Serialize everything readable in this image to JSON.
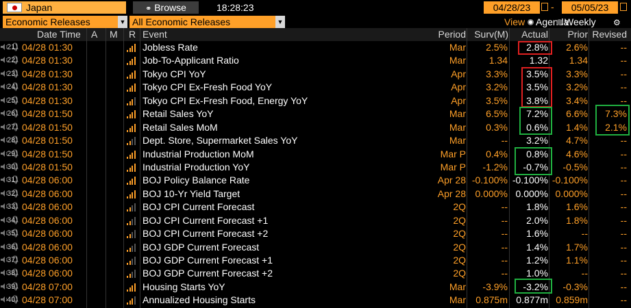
{
  "toolbar": {
    "country": "Japan",
    "browse_label": "Browse",
    "time": "18:28:23",
    "start_date": "04/28/23",
    "end_date": "05/05/23",
    "date_separator": "-"
  },
  "filters": {
    "category": "Economic Releases",
    "subcategory": "All Economic Releases",
    "view_label": "View",
    "agenda_label": "Agenda",
    "weekly_label": "Weekly"
  },
  "columns": {
    "datetime": "Date Time",
    "a": "A",
    "m": "M",
    "r": "R",
    "event": "Event",
    "period": "Period",
    "surv": "Surv(M)",
    "actual": "Actual",
    "prior": "Prior",
    "revised": "Revised"
  },
  "rows": [
    {
      "n": "21)",
      "dt": "04/28 01:30",
      "event": "Jobless Rate",
      "period": "Mar",
      "surv": "2.5%",
      "actual": "2.8%",
      "prior": "2.6%",
      "revised": "--",
      "rel": 4
    },
    {
      "n": "22)",
      "dt": "04/28 01:30",
      "event": "Job-To-Applicant Ratio",
      "period": "Mar",
      "surv": "1.34",
      "actual": "1.32",
      "prior": "1.34",
      "revised": "--",
      "rel": 4
    },
    {
      "n": "23)",
      "dt": "04/28 01:30",
      "event": "Tokyo CPI YoY",
      "period": "Apr",
      "surv": "3.3%",
      "actual": "3.5%",
      "prior": "3.3%",
      "revised": "--",
      "rel": 4
    },
    {
      "n": "24)",
      "dt": "04/28 01:30",
      "event": "Tokyo CPI Ex-Fresh Food YoY",
      "period": "Apr",
      "surv": "3.2%",
      "actual": "3.5%",
      "prior": "3.2%",
      "revised": "--",
      "rel": 4
    },
    {
      "n": "25)",
      "dt": "04/28 01:30",
      "event": "Tokyo CPI Ex-Fresh Food, Energy YoY",
      "period": "Apr",
      "surv": "3.5%",
      "actual": "3.8%",
      "prior": "3.4%",
      "revised": "--",
      "rel": 3
    },
    {
      "n": "26)",
      "dt": "04/28 01:50",
      "event": "Retail Sales YoY",
      "period": "Mar",
      "surv": "6.5%",
      "actual": "7.2%",
      "prior": "6.6%",
      "revised": "7.3%",
      "rel": 4
    },
    {
      "n": "27)",
      "dt": "04/28 01:50",
      "event": "Retail Sales MoM",
      "period": "Mar",
      "surv": "0.3%",
      "actual": "0.6%",
      "prior": "1.4%",
      "revised": "2.1%",
      "rel": 4
    },
    {
      "n": "28)",
      "dt": "04/28 01:50",
      "event": "Dept. Store, Supermarket Sales YoY",
      "period": "Mar",
      "surv": "--",
      "actual": "3.2%",
      "prior": "4.7%",
      "revised": "--",
      "rel": 2
    },
    {
      "n": "29)",
      "dt": "04/28 01:50",
      "event": "Industrial Production MoM",
      "period": "Mar P",
      "surv": "0.4%",
      "actual": "0.8%",
      "prior": "4.6%",
      "revised": "--",
      "rel": 4
    },
    {
      "n": "30)",
      "dt": "04/28 01:50",
      "event": "Industrial Production YoY",
      "period": "Mar P",
      "surv": "-1.2%",
      "actual": "-0.7%",
      "prior": "-0.5%",
      "revised": "--",
      "rel": 4
    },
    {
      "n": "31)",
      "dt": "04/28 06:00",
      "event": "BOJ Policy Balance Rate",
      "period": "Apr 28",
      "surv": "-0.100%",
      "actual": "-0.100%",
      "prior": "-0.100%",
      "revised": "--",
      "rel": 4
    },
    {
      "n": "32)",
      "dt": "04/28 06:00",
      "event": "BOJ 10-Yr Yield Target",
      "period": "Apr 28",
      "surv": "0.000%",
      "actual": "0.000%",
      "prior": "0.000%",
      "revised": "--",
      "rel": 4
    },
    {
      "n": "33)",
      "dt": "04/28 06:00",
      "event": "BOJ CPI Current Forecast",
      "period": "2Q",
      "surv": "--",
      "actual": "1.8%",
      "prior": "1.6%",
      "revised": "--",
      "rel": 2
    },
    {
      "n": "34)",
      "dt": "04/28 06:00",
      "event": "BOJ CPI Current Forecast +1",
      "period": "2Q",
      "surv": "--",
      "actual": "2.0%",
      "prior": "1.8%",
      "revised": "--",
      "rel": 2
    },
    {
      "n": "35)",
      "dt": "04/28 06:00",
      "event": "BOJ CPI Current Forecast +2",
      "period": "2Q",
      "surv": "--",
      "actual": "1.6%",
      "prior": "--",
      "revised": "--",
      "rel": 2
    },
    {
      "n": "36)",
      "dt": "04/28 06:00",
      "event": "BOJ GDP Current Forecast",
      "period": "2Q",
      "surv": "--",
      "actual": "1.4%",
      "prior": "1.7%",
      "revised": "--",
      "rel": 2
    },
    {
      "n": "37)",
      "dt": "04/28 06:00",
      "event": "BOJ GDP Current Forecast +1",
      "period": "2Q",
      "surv": "--",
      "actual": "1.2%",
      "prior": "1.1%",
      "revised": "--",
      "rel": 2
    },
    {
      "n": "38)",
      "dt": "04/28 06:00",
      "event": "BOJ GDP Current Forecast +2",
      "period": "2Q",
      "surv": "--",
      "actual": "1.0%",
      "prior": "--",
      "revised": "--",
      "rel": 2
    },
    {
      "n": "39)",
      "dt": "04/28 07:00",
      "event": "Housing Starts YoY",
      "period": "Mar",
      "surv": "-3.9%",
      "actual": "-3.2%",
      "prior": "-0.3%",
      "revised": "--",
      "rel": 4
    },
    {
      "n": "40)",
      "dt": "04/28 07:00",
      "event": "Annualized Housing Starts",
      "period": "Mar",
      "surv": "0.875m",
      "actual": "0.877m",
      "prior": "0.859m",
      "revised": "--",
      "rel": 3
    }
  ],
  "colors": {
    "accent": "#ffa028",
    "highlight_red": "#e02020",
    "highlight_green": "#20b040"
  }
}
